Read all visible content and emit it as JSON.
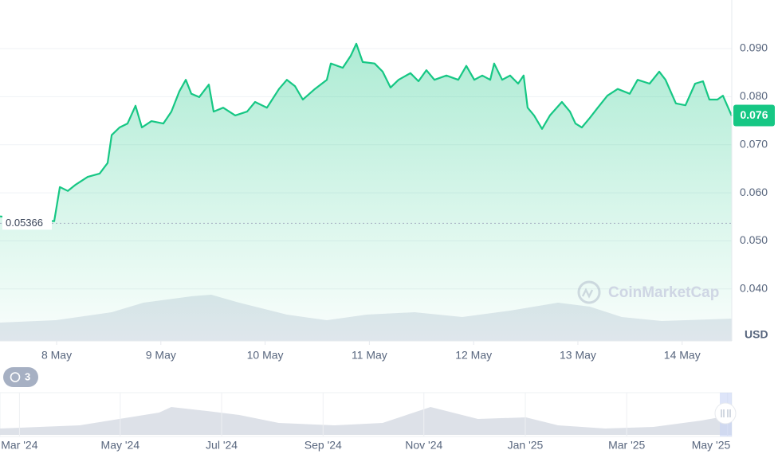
{
  "chart_data": {
    "type": "line",
    "color": "#16c784",
    "x": [
      7.457,
      7.977,
      8.031,
      8.107,
      8.183,
      8.298,
      8.413,
      8.489,
      8.528,
      8.604,
      8.68,
      8.757,
      8.818,
      8.91,
      9.024,
      9.101,
      9.177,
      9.239,
      9.292,
      9.368,
      9.46,
      9.506,
      9.598,
      9.713,
      9.827,
      9.904,
      10.018,
      10.133,
      10.209,
      10.286,
      10.362,
      10.477,
      10.592,
      10.63,
      10.745,
      10.821,
      10.875,
      10.936,
      11.05,
      11.127,
      11.203,
      11.28,
      11.394,
      11.471,
      11.547,
      11.624,
      11.739,
      11.853,
      11.93,
      12.006,
      12.083,
      12.159,
      12.197,
      12.274,
      12.35,
      12.427,
      12.48,
      12.518,
      12.58,
      12.656,
      12.732,
      12.847,
      12.924,
      12.977,
      13.038,
      13.115,
      13.191,
      13.283,
      13.382,
      13.497,
      13.573,
      13.688,
      13.78,
      13.841,
      13.94,
      14.032,
      14.124,
      14.2,
      14.261,
      14.338,
      14.391,
      14.476
    ],
    "values": [
      0.0551,
      0.0541,
      0.0612,
      0.0604,
      0.0617,
      0.0633,
      0.064,
      0.0662,
      0.072,
      0.0736,
      0.0744,
      0.0781,
      0.0736,
      0.0749,
      0.0744,
      0.0769,
      0.0811,
      0.0835,
      0.0806,
      0.0799,
      0.0825,
      0.0769,
      0.0777,
      0.0761,
      0.0769,
      0.0789,
      0.0777,
      0.0816,
      0.0835,
      0.0822,
      0.0794,
      0.0816,
      0.0835,
      0.0869,
      0.086,
      0.0885,
      0.091,
      0.0872,
      0.0869,
      0.0852,
      0.0819,
      0.0835,
      0.0849,
      0.0832,
      0.0855,
      0.0835,
      0.0844,
      0.0835,
      0.0864,
      0.0835,
      0.0844,
      0.0835,
      0.0869,
      0.0835,
      0.0844,
      0.0827,
      0.0844,
      0.0777,
      0.0761,
      0.0733,
      0.0761,
      0.0789,
      0.0769,
      0.0744,
      0.0736,
      0.0756,
      0.0777,
      0.0802,
      0.0816,
      0.0806,
      0.0835,
      0.0827,
      0.0852,
      0.0835,
      0.0786,
      0.0782,
      0.0827,
      0.0832,
      0.0794,
      0.0794,
      0.0802,
      0.076
    ],
    "xlim": [
      7.457,
      14.476
    ],
    "xticks": [
      {
        "value": 8,
        "label": "8 May"
      },
      {
        "value": 9,
        "label": "9 May"
      },
      {
        "value": 10,
        "label": "10 May"
      },
      {
        "value": 11,
        "label": "11 May"
      },
      {
        "value": 12,
        "label": "12 May"
      },
      {
        "value": 13,
        "label": "13 May"
      },
      {
        "value": 14,
        "label": "14 May"
      }
    ],
    "ylim": [
      0.0292,
      0.1001
    ],
    "yticks": [
      {
        "value": 0.04,
        "label": "0.040"
      },
      {
        "value": 0.05,
        "label": "0.050"
      },
      {
        "value": 0.06,
        "label": "0.060"
      },
      {
        "value": 0.07,
        "label": "0.070"
      },
      {
        "value": 0.08,
        "label": "0.080"
      },
      {
        "value": 0.09,
        "label": "0.090"
      }
    ],
    "grid": true,
    "y_unit": "USD",
    "last_price": {
      "value": 0.076,
      "label": "0.076"
    },
    "reference_line": {
      "value": 0.05366,
      "label": "0.05366"
    },
    "watermark": "CoinMarketCap",
    "history_badge": "3",
    "volume": {
      "color": "#e3e7ee",
      "x": [
        7.457,
        7.992,
        8.528,
        8.834,
        9.292,
        9.483,
        9.751,
        10.209,
        10.592,
        10.974,
        11.433,
        11.891,
        12.35,
        12.809,
        13.115,
        13.42,
        13.803,
        14.476
      ],
      "values": [
        23,
        26,
        36,
        48,
        56,
        58,
        48,
        33,
        26,
        33,
        36,
        30,
        38,
        48,
        43,
        30,
        25,
        28
      ]
    },
    "navigator": {
      "color": "#dde1e8",
      "x": [
        2024.135,
        2024.266,
        2024.397,
        2024.417,
        2024.476,
        2024.529,
        2024.594,
        2024.686,
        2024.765,
        2024.844,
        2024.922,
        2025.001,
        2025.054,
        2025.132,
        2025.211,
        2025.29,
        2025.34
      ],
      "values": [
        8,
        12,
        28,
        35,
        30,
        25,
        15,
        12,
        15,
        35,
        20,
        22,
        12,
        8,
        10,
        18,
        25
      ],
      "xlim": [
        2024.135,
        2025.34
      ],
      "xticks": [
        {
          "value": 2024.167,
          "label": "Mar '24"
        },
        {
          "value": 2024.333,
          "label": "May '24"
        },
        {
          "value": 2024.5,
          "label": "Jul '24"
        },
        {
          "value": 2024.667,
          "label": "Sep '24"
        },
        {
          "value": 2024.833,
          "label": "Nov '24"
        },
        {
          "value": 2025.0,
          "label": "Jan '25"
        },
        {
          "value": 2025.167,
          "label": "Mar '25"
        },
        {
          "value": 2025.333,
          "label": "May '25"
        }
      ]
    }
  }
}
